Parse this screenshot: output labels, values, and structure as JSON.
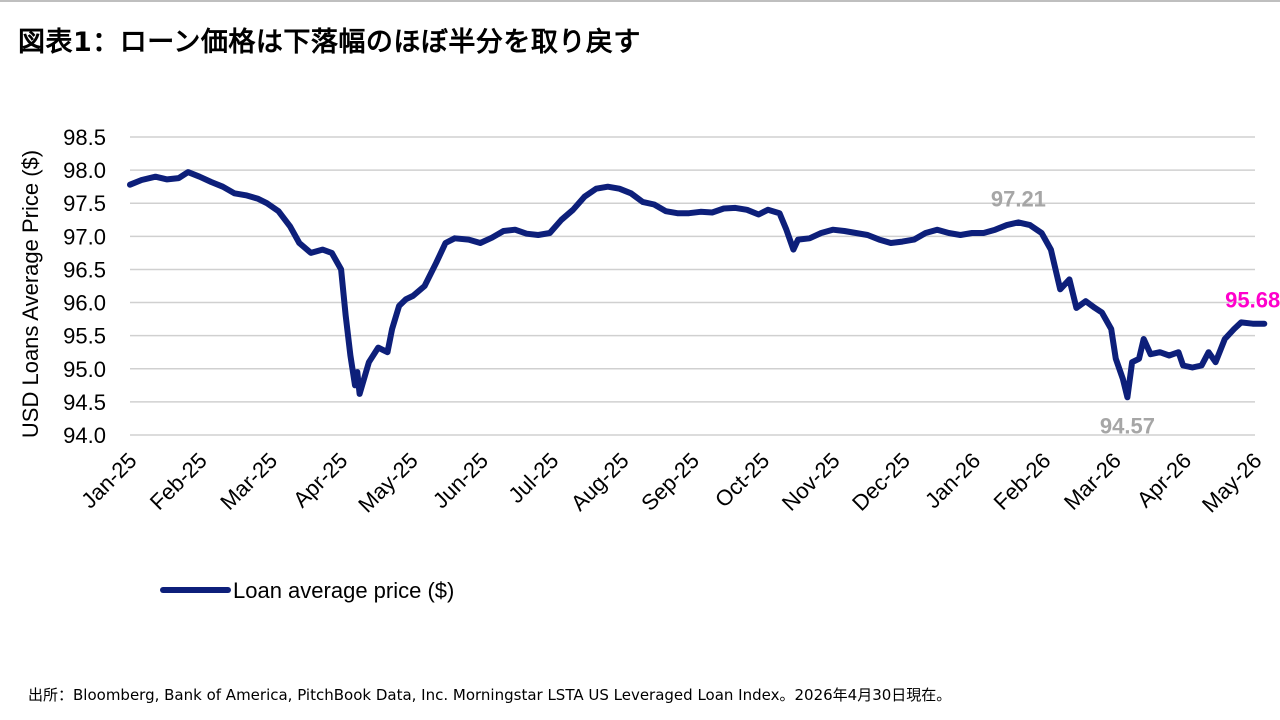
{
  "title": "図表1：ローン価格は下落幅のほぼ半分を取り戻す",
  "source": "出所：Bloomberg, Bank of America, PitchBook Data, Inc. Morningstar LSTA US Leveraged Loan Index。2026年4月30日現在。",
  "colors": {
    "line": "#0d1f7a",
    "grid": "#d0d0d0",
    "gray_label": "#a6a6a6",
    "latest_label": "#ff00cc"
  },
  "chart_data": {
    "type": "line",
    "ylabel": "USD Loans Average Price ($)",
    "ylim": [
      94.0,
      98.5
    ],
    "yticks": [
      "94.0",
      "94.5",
      "95.0",
      "95.5",
      "96.0",
      "96.5",
      "97.0",
      "97.5",
      "98.0",
      "98.5"
    ],
    "xticks": [
      "Jan-25",
      "Feb-25",
      "Mar-25",
      "Apr-25",
      "May-25",
      "Jun-25",
      "Jul-25",
      "Aug-25",
      "Sep-25",
      "Oct-25",
      "Nov-25",
      "Dec-25",
      "Jan-26",
      "Feb-26",
      "Mar-26",
      "Apr-26",
      "May-26"
    ],
    "grid": true,
    "legend": "bottom-left",
    "series": [
      {
        "name": "Loan average price ($)",
        "points": [
          [
            "2025-01-01",
            97.78
          ],
          [
            "2025-01-06",
            97.85
          ],
          [
            "2025-01-12",
            97.9
          ],
          [
            "2025-01-17",
            97.86
          ],
          [
            "2025-01-22",
            97.88
          ],
          [
            "2025-01-26",
            97.97
          ],
          [
            "2025-01-31",
            97.9
          ],
          [
            "2025-02-05",
            97.82
          ],
          [
            "2025-02-10",
            97.75
          ],
          [
            "2025-02-15",
            97.65
          ],
          [
            "2025-02-20",
            97.62
          ],
          [
            "2025-02-25",
            97.57
          ],
          [
            "2025-03-01",
            97.5
          ],
          [
            "2025-03-06",
            97.38
          ],
          [
            "2025-03-11",
            97.15
          ],
          [
            "2025-03-15",
            96.9
          ],
          [
            "2025-03-20",
            96.75
          ],
          [
            "2025-03-25",
            96.8
          ],
          [
            "2025-03-29",
            96.75
          ],
          [
            "2025-04-02",
            96.5
          ],
          [
            "2025-04-04",
            95.8
          ],
          [
            "2025-04-06",
            95.2
          ],
          [
            "2025-04-08",
            94.75
          ],
          [
            "2025-04-09",
            94.95
          ],
          [
            "2025-04-10",
            94.62
          ],
          [
            "2025-04-14",
            95.1
          ],
          [
            "2025-04-18",
            95.32
          ],
          [
            "2025-04-22",
            95.25
          ],
          [
            "2025-04-24",
            95.6
          ],
          [
            "2025-04-27",
            95.95
          ],
          [
            "2025-04-30",
            96.05
          ],
          [
            "2025-05-03",
            96.1
          ],
          [
            "2025-05-08",
            96.25
          ],
          [
            "2025-05-13",
            96.6
          ],
          [
            "2025-05-17",
            96.9
          ],
          [
            "2025-05-21",
            96.97
          ],
          [
            "2025-05-27",
            96.95
          ],
          [
            "2025-06-01",
            96.9
          ],
          [
            "2025-06-06",
            96.98
          ],
          [
            "2025-06-11",
            97.08
          ],
          [
            "2025-06-16",
            97.1
          ],
          [
            "2025-06-21",
            97.04
          ],
          [
            "2025-06-26",
            97.02
          ],
          [
            "2025-07-01",
            97.05
          ],
          [
            "2025-07-06",
            97.25
          ],
          [
            "2025-07-11",
            97.4
          ],
          [
            "2025-07-16",
            97.6
          ],
          [
            "2025-07-21",
            97.72
          ],
          [
            "2025-07-26",
            97.75
          ],
          [
            "2025-07-31",
            97.72
          ],
          [
            "2025-08-05",
            97.65
          ],
          [
            "2025-08-10",
            97.52
          ],
          [
            "2025-08-15",
            97.48
          ],
          [
            "2025-08-20",
            97.38
          ],
          [
            "2025-08-25",
            97.35
          ],
          [
            "2025-08-30",
            97.35
          ],
          [
            "2025-09-04",
            97.37
          ],
          [
            "2025-09-09",
            97.36
          ],
          [
            "2025-09-14",
            97.42
          ],
          [
            "2025-09-19",
            97.43
          ],
          [
            "2025-09-24",
            97.4
          ],
          [
            "2025-09-29",
            97.33
          ],
          [
            "2025-10-03",
            97.4
          ],
          [
            "2025-10-08",
            97.35
          ],
          [
            "2025-10-11",
            97.1
          ],
          [
            "2025-10-14",
            96.8
          ],
          [
            "2025-10-16",
            96.95
          ],
          [
            "2025-10-21",
            96.97
          ],
          [
            "2025-10-26",
            97.05
          ],
          [
            "2025-10-31",
            97.1
          ],
          [
            "2025-11-05",
            97.08
          ],
          [
            "2025-11-10",
            97.05
          ],
          [
            "2025-11-15",
            97.02
          ],
          [
            "2025-11-20",
            96.95
          ],
          [
            "2025-11-25",
            96.9
          ],
          [
            "2025-11-30",
            96.92
          ],
          [
            "2025-12-05",
            96.95
          ],
          [
            "2025-12-10",
            97.05
          ],
          [
            "2025-12-15",
            97.1
          ],
          [
            "2025-12-20",
            97.05
          ],
          [
            "2025-12-25",
            97.02
          ],
          [
            "2025-12-30",
            97.05
          ],
          [
            "2026-01-04",
            97.05
          ],
          [
            "2026-01-09",
            97.1
          ],
          [
            "2026-01-14",
            97.17
          ],
          [
            "2026-01-19",
            97.21
          ],
          [
            "2026-01-24",
            97.17
          ],
          [
            "2026-01-29",
            97.05
          ],
          [
            "2026-02-02",
            96.8
          ],
          [
            "2026-02-06",
            96.2
          ],
          [
            "2026-02-10",
            96.35
          ],
          [
            "2026-02-13",
            95.92
          ],
          [
            "2026-02-17",
            96.02
          ],
          [
            "2026-02-21",
            95.92
          ],
          [
            "2026-02-24",
            95.85
          ],
          [
            "2026-02-28",
            95.6
          ],
          [
            "2026-03-02",
            95.15
          ],
          [
            "2026-03-05",
            94.85
          ],
          [
            "2026-03-07",
            94.57
          ],
          [
            "2026-03-09",
            95.1
          ],
          [
            "2026-03-12",
            95.15
          ],
          [
            "2026-03-14",
            95.45
          ],
          [
            "2026-03-17",
            95.22
          ],
          [
            "2026-03-21",
            95.25
          ],
          [
            "2026-03-25",
            95.2
          ],
          [
            "2026-03-29",
            95.25
          ],
          [
            "2026-03-31",
            95.05
          ],
          [
            "2026-04-04",
            95.02
          ],
          [
            "2026-04-08",
            95.05
          ],
          [
            "2026-04-11",
            95.25
          ],
          [
            "2026-04-14",
            95.1
          ],
          [
            "2026-04-18",
            95.45
          ],
          [
            "2026-04-22",
            95.6
          ],
          [
            "2026-04-25",
            95.7
          ],
          [
            "2026-04-30",
            95.68
          ],
          [
            "2026-05-05",
            95.68
          ]
        ]
      }
    ],
    "annotations": [
      {
        "text": "97.21",
        "x": "2026-01-19",
        "y": 97.21,
        "color": "gray",
        "placement": "above"
      },
      {
        "text": "94.57",
        "x": "2026-03-07",
        "y": 94.57,
        "color": "gray",
        "placement": "below"
      },
      {
        "text": "95.68",
        "x": "2026-04-30",
        "y": 95.68,
        "color": "magenta",
        "placement": "above"
      }
    ]
  }
}
